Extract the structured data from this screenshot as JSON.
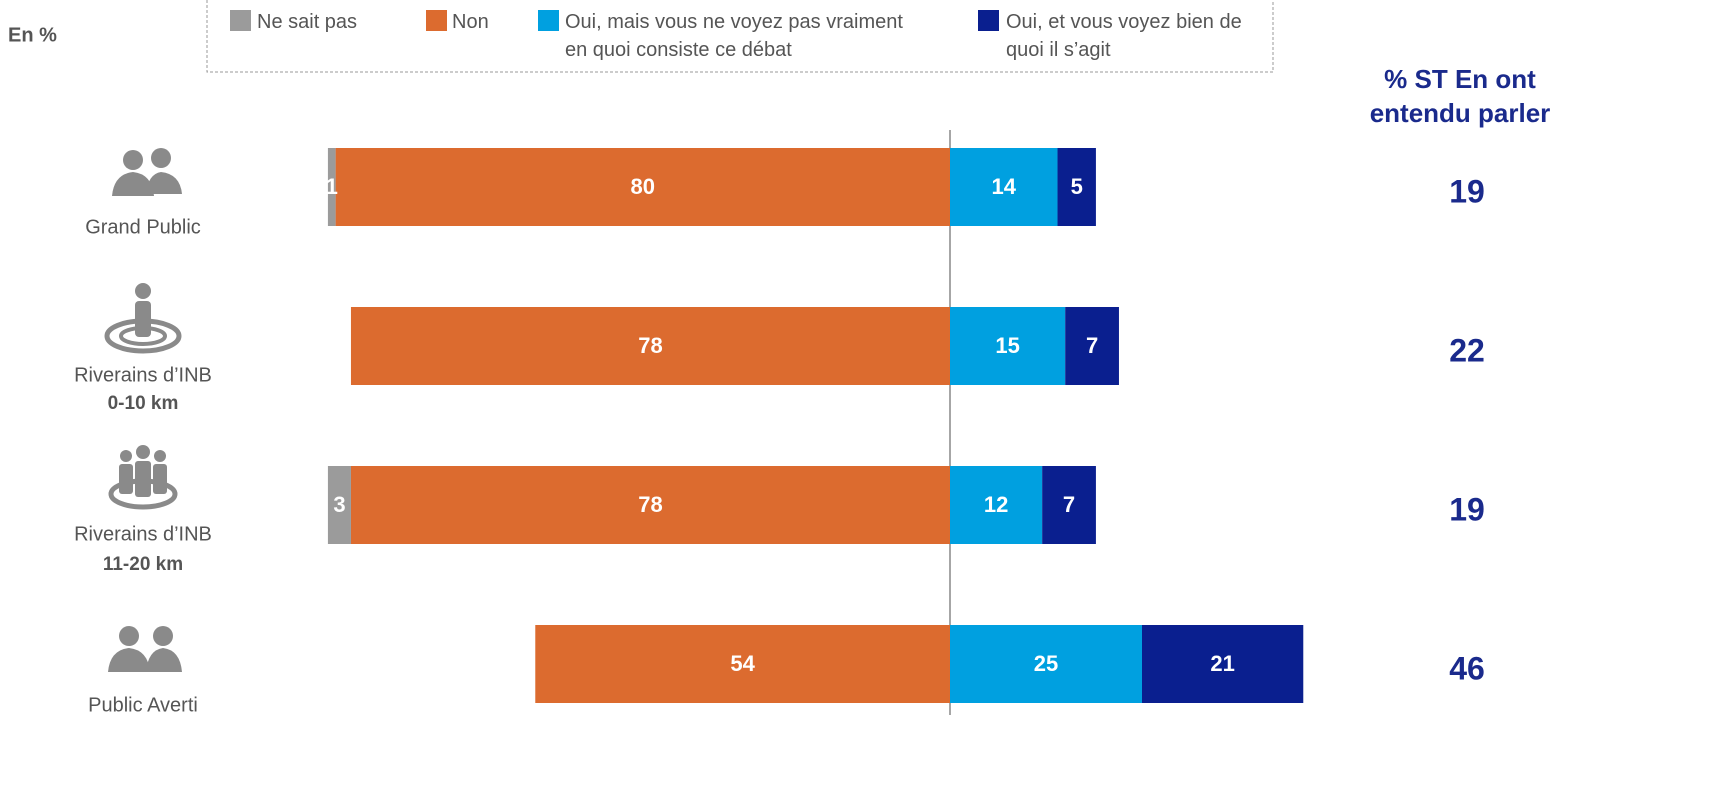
{
  "chart_data": {
    "type": "diverging_bar",
    "unit_label": "En %",
    "categories": [
      "Grand Public",
      "Riverains d’INB",
      "Riverains d’INB",
      "Public Averti"
    ],
    "category_sublabels": [
      null,
      "0-10 km",
      "11-20 km",
      null
    ],
    "series": [
      {
        "name": "Ne sait pas",
        "color": "#9b9b9b",
        "side": "left",
        "values": [
          1,
          null,
          3,
          null
        ]
      },
      {
        "name": "Non",
        "color": "#dc6b2f",
        "side": "left",
        "values": [
          80,
          78,
          78,
          54
        ]
      },
      {
        "name": "Oui, mais vous ne voyez pas vraiment en quoi consiste ce débat",
        "color": "#00a0e0",
        "side": "right",
        "values": [
          14,
          15,
          12,
          25
        ]
      },
      {
        "name": "Oui, et vous voyez bien de quoi il s’agit",
        "color": "#0a1f8f",
        "side": "right",
        "values": [
          5,
          7,
          7,
          21
        ]
      }
    ],
    "total_title": "% ST En ont entendu parler",
    "totals": [
      19,
      22,
      19,
      46
    ],
    "totals_color": "#1a2a8c"
  }
}
